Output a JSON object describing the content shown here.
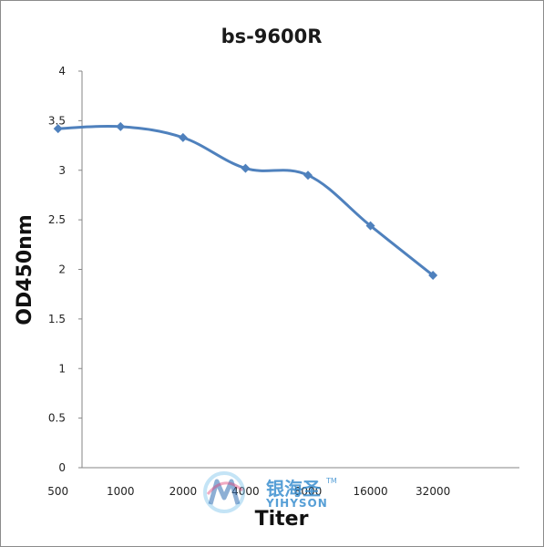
{
  "chart_data": {
    "type": "line",
    "title": "bs-9600R",
    "xlabel": "Titer",
    "ylabel": "OD450nm",
    "categories": [
      "500",
      "1000",
      "2000",
      "4000",
      "8000",
      "16000",
      "32000"
    ],
    "series": [
      {
        "values": [
          3.42,
          3.44,
          3.33,
          3.02,
          2.95,
          2.44,
          1.94
        ]
      }
    ],
    "ylim": [
      0,
      4
    ],
    "yticks": [
      "0",
      "0.5",
      "1",
      "1.5",
      "2",
      "2.5",
      "3",
      "3.5",
      "4"
    ],
    "grid": false,
    "legend": "none",
    "colors": {
      "series": "#4f81bd",
      "axis": "#868686"
    }
  },
  "watermark": {
    "name_cn": "银海圣",
    "name_en": "YIHYSON",
    "tm": "TM"
  }
}
